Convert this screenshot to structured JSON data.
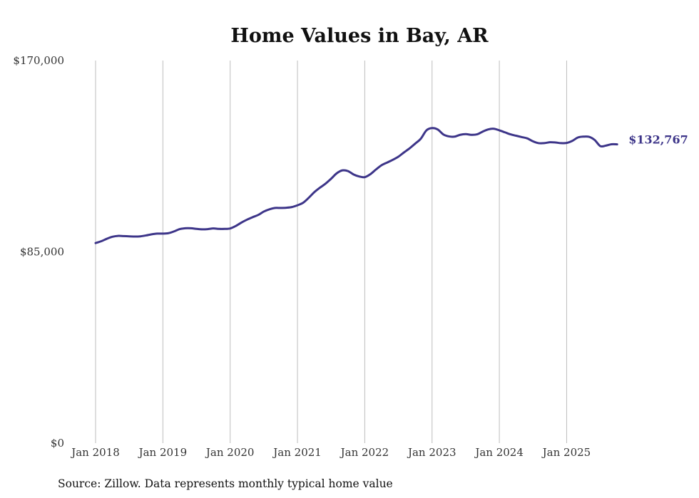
{
  "chart_data": {
    "type": "line",
    "title": "Home Values in Bay, AR",
    "source": "Source: Zillow. Data represents monthly typical home value",
    "ylim": [
      0,
      170000
    ],
    "y_ticks": [
      {
        "value": 0,
        "label": "$0"
      },
      {
        "value": 85000,
        "label": "$85,000"
      },
      {
        "value": 170000,
        "label": "$170,000"
      }
    ],
    "x_ticks": [
      {
        "value": "2018-01",
        "label": "Jan 2018"
      },
      {
        "value": "2019-01",
        "label": "Jan 2019"
      },
      {
        "value": "2020-01",
        "label": "Jan 2020"
      },
      {
        "value": "2021-01",
        "label": "Jan 2021"
      },
      {
        "value": "2022-01",
        "label": "Jan 2022"
      },
      {
        "value": "2023-01",
        "label": "Jan 2023"
      },
      {
        "value": "2024-01",
        "label": "Jan 2024"
      },
      {
        "value": "2025-01",
        "label": "Jan 2025"
      }
    ],
    "x_range": [
      "2018-01",
      "2025-10"
    ],
    "grid": "vertical",
    "line_color": "#3d3589",
    "end_label": "$132,767",
    "series": [
      {
        "x": [
          "2018-01",
          "2018-02",
          "2018-03",
          "2018-04",
          "2018-05",
          "2018-06",
          "2018-07",
          "2018-08",
          "2018-09",
          "2018-10",
          "2018-11",
          "2018-12",
          "2019-01",
          "2019-02",
          "2019-03",
          "2019-04",
          "2019-05",
          "2019-06",
          "2019-07",
          "2019-08",
          "2019-09",
          "2019-10",
          "2019-11",
          "2019-12",
          "2020-01",
          "2020-02",
          "2020-03",
          "2020-04",
          "2020-05",
          "2020-06",
          "2020-07",
          "2020-08",
          "2020-09",
          "2020-10",
          "2020-11",
          "2020-12",
          "2021-01",
          "2021-02",
          "2021-03",
          "2021-04",
          "2021-05",
          "2021-06",
          "2021-07",
          "2021-08",
          "2021-09",
          "2021-10",
          "2021-11",
          "2021-12",
          "2022-01",
          "2022-02",
          "2022-03",
          "2022-04",
          "2022-05",
          "2022-06",
          "2022-07",
          "2022-08",
          "2022-09",
          "2022-10",
          "2022-11",
          "2022-12",
          "2023-01",
          "2023-02",
          "2023-03",
          "2023-04",
          "2023-05",
          "2023-06",
          "2023-07",
          "2023-08",
          "2023-09",
          "2023-10",
          "2023-11",
          "2023-12",
          "2024-01",
          "2024-02",
          "2024-03",
          "2024-04",
          "2024-05",
          "2024-06",
          "2024-07",
          "2024-08",
          "2024-09",
          "2024-10",
          "2024-11",
          "2024-12",
          "2025-01",
          "2025-02",
          "2025-03",
          "2025-04",
          "2025-05",
          "2025-06",
          "2025-07",
          "2025-08",
          "2025-09",
          "2025-10"
        ],
        "values": [
          88900,
          89700,
          90800,
          91700,
          92100,
          92000,
          91900,
          91800,
          91900,
          92300,
          92800,
          93100,
          93100,
          93300,
          94100,
          95100,
          95500,
          95500,
          95200,
          95000,
          95100,
          95400,
          95200,
          95200,
          95400,
          96500,
          98000,
          99300,
          100400,
          101400,
          102900,
          103900,
          104500,
          104500,
          104600,
          104900,
          105700,
          106800,
          109000,
          111500,
          113500,
          115300,
          117500,
          119900,
          121200,
          120900,
          119400,
          118500,
          118200,
          119500,
          121600,
          123500,
          124700,
          125900,
          127300,
          129200,
          131000,
          133100,
          135300,
          139000,
          140000,
          139400,
          137200,
          136300,
          136200,
          137000,
          137300,
          137000,
          137200,
          138400,
          139400,
          139700,
          139000,
          138100,
          137200,
          136600,
          136000,
          135400,
          134100,
          133300,
          133300,
          133700,
          133600,
          133300,
          133400,
          134300,
          135800,
          136200,
          136100,
          134700,
          132000,
          132200,
          132800,
          132767
        ]
      }
    ]
  }
}
